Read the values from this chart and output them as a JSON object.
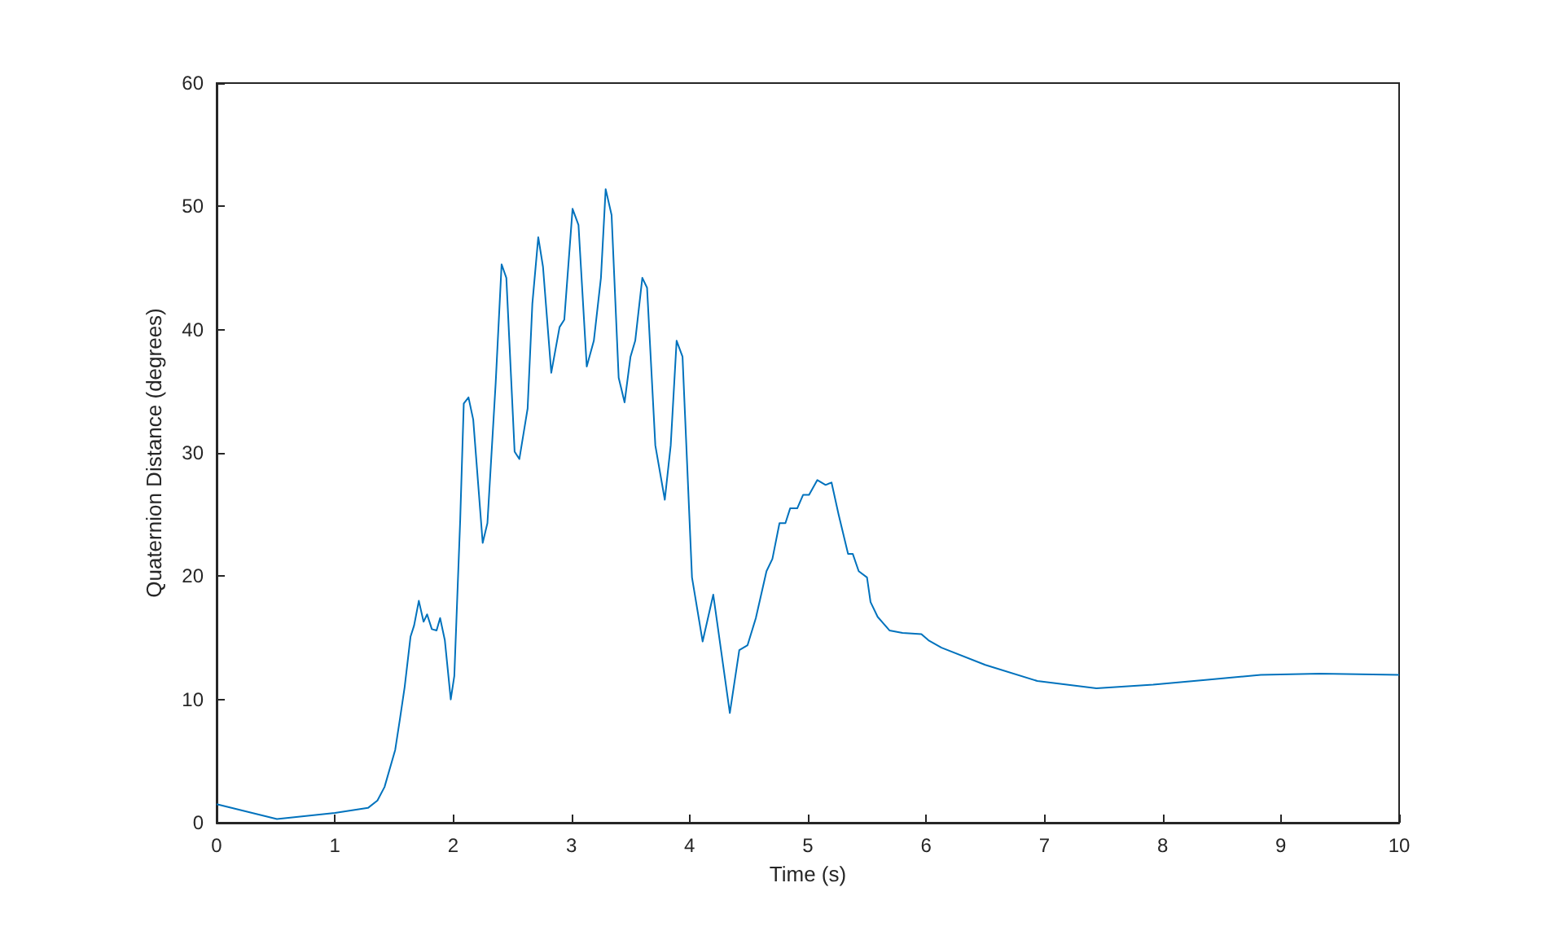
{
  "chart_data": {
    "type": "line",
    "xlabel": "Time (s)",
    "ylabel": "Quaternion Distance (degrees)",
    "x": [
      0,
      0.51,
      1.0,
      1.28,
      1.36,
      1.42,
      1.51,
      1.55,
      1.59,
      1.64,
      1.67,
      1.71,
      1.75,
      1.78,
      1.82,
      1.86,
      1.89,
      1.93,
      1.98,
      2.01,
      2.06,
      2.09,
      2.13,
      2.17,
      2.25,
      2.29,
      2.36,
      2.41,
      2.45,
      2.52,
      2.56,
      2.63,
      2.67,
      2.72,
      2.76,
      2.83,
      2.9,
      2.94,
      3.01,
      3.06,
      3.13,
      3.19,
      3.25,
      3.29,
      3.34,
      3.4,
      3.45,
      3.5,
      3.54,
      3.6,
      3.64,
      3.71,
      3.79,
      3.84,
      3.89,
      3.94,
      4.02,
      4.11,
      4.2,
      4.34,
      4.42,
      4.49,
      4.56,
      4.65,
      4.7,
      4.76,
      4.81,
      4.85,
      4.91,
      4.96,
      5.01,
      5.08,
      5.15,
      5.2,
      5.26,
      5.34,
      5.38,
      5.43,
      5.5,
      5.53,
      5.59,
      5.69,
      5.8,
      5.96,
      6.02,
      6.13,
      6.5,
      6.94,
      7.44,
      7.92,
      8.38,
      8.83,
      9.33,
      10
    ],
    "series": [
      {
        "color": "#0072bd",
        "values": [
          1.5,
          0.3,
          0.8,
          1.2,
          1.8,
          2.9,
          5.9,
          8.4,
          11,
          15.1,
          16,
          18,
          16.3,
          16.9,
          15.7,
          15.6,
          16.6,
          14.8,
          10,
          11.9,
          24.6,
          34,
          34.5,
          32.7,
          22.7,
          24.3,
          35.7,
          45.3,
          44.2,
          30.1,
          29.5,
          33.6,
          42.1,
          47.5,
          45.1,
          36.5,
          40.2,
          40.8,
          49.8,
          48.5,
          37,
          39.1,
          44.2,
          51.4,
          49.3,
          36.1,
          34.1,
          37.8,
          39.1,
          44.2,
          43.4,
          30.6,
          26.2,
          30.6,
          39.1,
          37.8,
          19.9,
          14.7,
          18.5,
          8.9,
          14,
          14.4,
          16.6,
          20.4,
          21.4,
          24.3,
          24.3,
          25.5,
          25.5,
          26.6,
          26.6,
          27.8,
          27.4,
          27.6,
          25,
          21.8,
          21.8,
          20.4,
          19.9,
          17.9,
          16.7,
          15.6,
          15.4,
          15.3,
          14.8,
          14.2,
          12.8,
          11.5,
          10.9,
          11.2,
          11.6,
          12,
          12.1,
          12
        ]
      }
    ],
    "xlim": [
      0,
      10
    ],
    "xticks": [
      0,
      1,
      2,
      3,
      4,
      5,
      6,
      7,
      8,
      9,
      10
    ],
    "ylim": [
      0,
      60
    ],
    "yticks": [
      0,
      10,
      20,
      30,
      40,
      50,
      60
    ],
    "grid": false,
    "marker": "none",
    "line_style": "solid"
  }
}
